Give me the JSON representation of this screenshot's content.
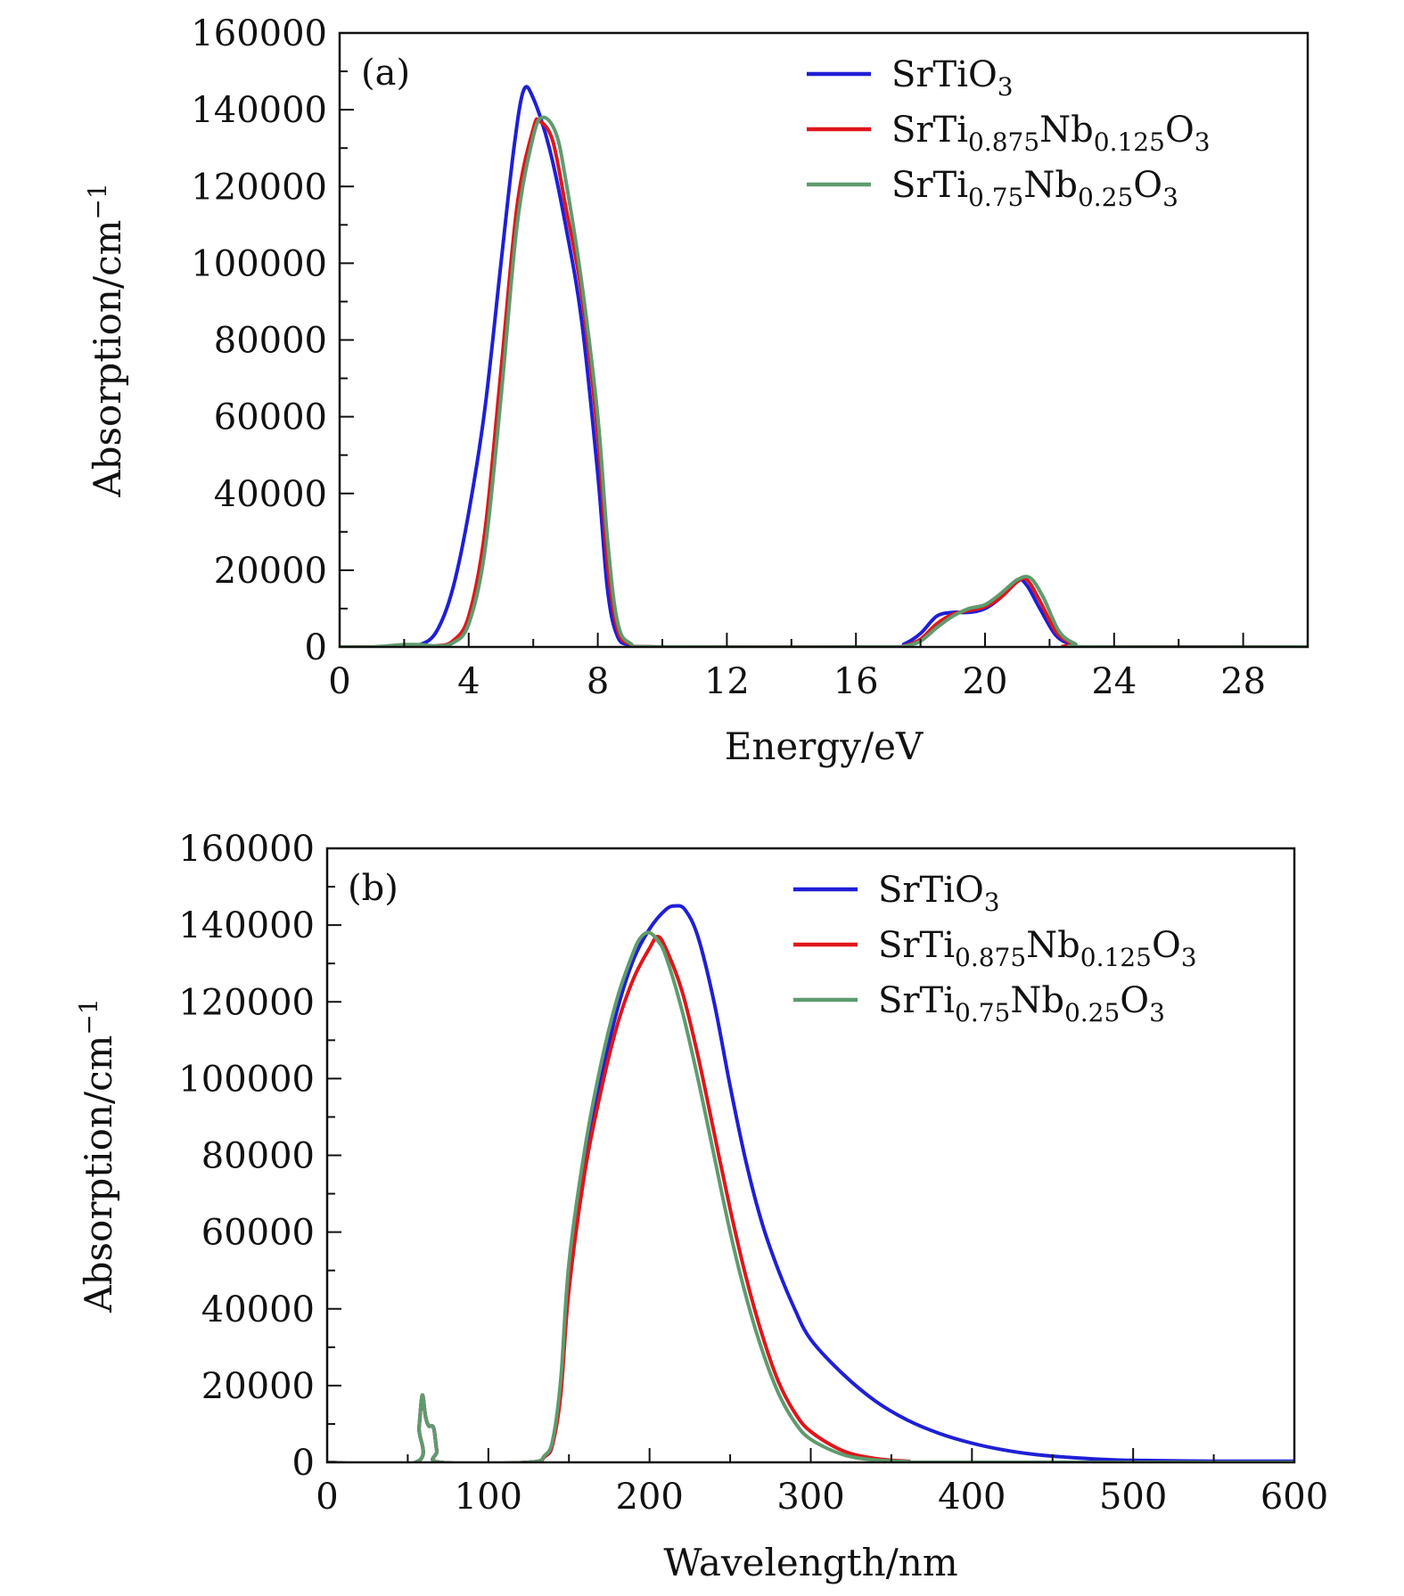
{
  "chart_data": [
    {
      "type": "line",
      "panel_label": "(a)",
      "xlabel": "Energy/eV",
      "ylabel": "Absorption/cm",
      "ylabel_sup": "−1",
      "xlim": [
        0,
        30
      ],
      "ylim": [
        0,
        160000
      ],
      "xticks": [
        0,
        4,
        8,
        12,
        16,
        20,
        24,
        28
      ],
      "yticks": [
        0,
        20000,
        40000,
        60000,
        80000,
        100000,
        120000,
        140000,
        160000
      ],
      "grid": false,
      "legend_position": "top-right",
      "series": [
        {
          "name": "SrTiO3",
          "legend": [
            {
              "t": "SrTiO"
            },
            {
              "t": "3",
              "sub": true
            }
          ],
          "color": "#1f1fd6",
          "points": [
            [
              0,
              0
            ],
            [
              1,
              0
            ],
            [
              2,
              300
            ],
            [
              2.5,
              600
            ],
            [
              3,
              4000
            ],
            [
              3.5,
              15000
            ],
            [
              4,
              35000
            ],
            [
              4.5,
              62000
            ],
            [
              5,
              100000
            ],
            [
              5.4,
              130000
            ],
            [
              5.7,
              145000
            ],
            [
              6,
              143000
            ],
            [
              6.5,
              130000
            ],
            [
              7,
              110000
            ],
            [
              7.5,
              85000
            ],
            [
              8,
              45000
            ],
            [
              8.3,
              15000
            ],
            [
              8.6,
              3000
            ],
            [
              9,
              500
            ],
            [
              10,
              0
            ],
            [
              17,
              0
            ],
            [
              17.5,
              800
            ],
            [
              18,
              3500
            ],
            [
              18.5,
              8000
            ],
            [
              19,
              9000
            ],
            [
              19.5,
              9000
            ],
            [
              20,
              10000
            ],
            [
              20.5,
              13000
            ],
            [
              21,
              17500
            ],
            [
              21.3,
              16000
            ],
            [
              21.7,
              10000
            ],
            [
              22.2,
              3000
            ],
            [
              22.7,
              500
            ],
            [
              23,
              0
            ],
            [
              30,
              0
            ]
          ]
        },
        {
          "name": "SrTi0.875Nb0.125O3",
          "legend": [
            {
              "t": "SrTi"
            },
            {
              "t": "0.875",
              "sub": true
            },
            {
              "t": "Nb"
            },
            {
              "t": "0.125",
              "sub": true
            },
            {
              "t": "O"
            },
            {
              "t": "3",
              "sub": true
            }
          ],
          "color": "#e0161b",
          "points": [
            [
              0,
              0
            ],
            [
              1,
              0
            ],
            [
              2,
              300
            ],
            [
              2.5,
              300
            ],
            [
              3,
              300
            ],
            [
              3.5,
              1500
            ],
            [
              4,
              8000
            ],
            [
              4.5,
              30000
            ],
            [
              5,
              72000
            ],
            [
              5.5,
              115000
            ],
            [
              6,
              135000
            ],
            [
              6.2,
              137000
            ],
            [
              6.6,
              132000
            ],
            [
              7,
              115000
            ],
            [
              7.5,
              92000
            ],
            [
              8,
              55000
            ],
            [
              8.3,
              22000
            ],
            [
              8.6,
              5000
            ],
            [
              9,
              800
            ],
            [
              10,
              0
            ],
            [
              17,
              0
            ],
            [
              17.5,
              300
            ],
            [
              18,
              2000
            ],
            [
              18.5,
              6000
            ],
            [
              19,
              8500
            ],
            [
              19.5,
              9500
            ],
            [
              20,
              10500
            ],
            [
              20.5,
              13000
            ],
            [
              21,
              17000
            ],
            [
              21.3,
              17500
            ],
            [
              21.7,
              12000
            ],
            [
              22.2,
              4000
            ],
            [
              22.7,
              800
            ],
            [
              23,
              0
            ],
            [
              30,
              0
            ]
          ]
        },
        {
          "name": "SrTi0.75Nb0.25O3",
          "legend": [
            {
              "t": "SrTi"
            },
            {
              "t": "0.75",
              "sub": true
            },
            {
              "t": "Nb"
            },
            {
              "t": "0.25",
              "sub": true
            },
            {
              "t": "O"
            },
            {
              "t": "3",
              "sub": true
            }
          ],
          "color": "#5f9b6e",
          "points": [
            [
              0,
              0
            ],
            [
              1,
              0
            ],
            [
              2,
              600
            ],
            [
              2.5,
              600
            ],
            [
              3,
              300
            ],
            [
              3.5,
              1000
            ],
            [
              4,
              6000
            ],
            [
              4.5,
              25000
            ],
            [
              5,
              65000
            ],
            [
              5.5,
              110000
            ],
            [
              6,
              133000
            ],
            [
              6.3,
              138000
            ],
            [
              6.7,
              134000
            ],
            [
              7,
              122000
            ],
            [
              7.5,
              95000
            ],
            [
              8,
              60000
            ],
            [
              8.3,
              28000
            ],
            [
              8.6,
              7000
            ],
            [
              9,
              1000
            ],
            [
              10,
              0
            ],
            [
              17,
              0
            ],
            [
              17.5,
              200
            ],
            [
              18,
              1500
            ],
            [
              18.5,
              5000
            ],
            [
              19,
              8000
            ],
            [
              19.5,
              10000
            ],
            [
              20,
              11000
            ],
            [
              20.5,
              14000
            ],
            [
              21,
              17500
            ],
            [
              21.4,
              18000
            ],
            [
              21.8,
              13000
            ],
            [
              22.3,
              4000
            ],
            [
              22.8,
              800
            ],
            [
              23.2,
              0
            ],
            [
              30,
              0
            ]
          ]
        }
      ]
    },
    {
      "type": "line",
      "panel_label": "(b)",
      "xlabel": "Wavelength/nm",
      "ylabel": "Absorption/cm",
      "ylabel_sup": "−1",
      "xlim": [
        0,
        600
      ],
      "ylim": [
        0,
        160000
      ],
      "xticks": [
        0,
        100,
        200,
        300,
        400,
        500,
        600
      ],
      "yticks": [
        0,
        20000,
        40000,
        60000,
        80000,
        100000,
        120000,
        140000,
        160000
      ],
      "grid": false,
      "legend_position": "top-right",
      "series": [
        {
          "name": "SrTiO3",
          "legend": [
            {
              "t": "SrTiO"
            },
            {
              "t": "3",
              "sub": true
            }
          ],
          "color": "#1f1fd6",
          "points": [
            [
              0,
              0
            ],
            [
              55,
              0
            ],
            [
              57,
              9000
            ],
            [
              59,
              17500
            ],
            [
              61,
              12000
            ],
            [
              63,
              9500
            ],
            [
              66,
              9000
            ],
            [
              68,
              3000
            ],
            [
              70,
              0
            ],
            [
              125,
              0
            ],
            [
              135,
              1500
            ],
            [
              140,
              5000
            ],
            [
              145,
              20000
            ],
            [
              150,
              48000
            ],
            [
              160,
              78000
            ],
            [
              170,
              100000
            ],
            [
              180,
              118000
            ],
            [
              190,
              131000
            ],
            [
              200,
              139000
            ],
            [
              210,
              144000
            ],
            [
              216,
              145000
            ],
            [
              222,
              144000
            ],
            [
              230,
              137000
            ],
            [
              240,
              120000
            ],
            [
              250,
              98000
            ],
            [
              260,
              78000
            ],
            [
              270,
              62000
            ],
            [
              280,
              50000
            ],
            [
              290,
              40000
            ],
            [
              300,
              32000
            ],
            [
              320,
              23000
            ],
            [
              340,
              16000
            ],
            [
              360,
              11000
            ],
            [
              380,
              7500
            ],
            [
              400,
              5000
            ],
            [
              420,
              3200
            ],
            [
              440,
              2000
            ],
            [
              460,
              1300
            ],
            [
              480,
              800
            ],
            [
              500,
              500
            ],
            [
              550,
              300
            ],
            [
              600,
              300
            ]
          ]
        },
        {
          "name": "SrTi0.875Nb0.125O3",
          "legend": [
            {
              "t": "SrTi"
            },
            {
              "t": "0.875",
              "sub": true
            },
            {
              "t": "Nb"
            },
            {
              "t": "0.125",
              "sub": true
            },
            {
              "t": "O"
            },
            {
              "t": "3",
              "sub": true
            }
          ],
          "color": "#e0161b",
          "points": [
            [
              0,
              0
            ],
            [
              55,
              0
            ],
            [
              57,
              9000
            ],
            [
              59,
              17500
            ],
            [
              61,
              12000
            ],
            [
              63,
              9500
            ],
            [
              66,
              9000
            ],
            [
              68,
              3000
            ],
            [
              70,
              0
            ],
            [
              125,
              0
            ],
            [
              135,
              1500
            ],
            [
              140,
              5000
            ],
            [
              145,
              18000
            ],
            [
              150,
              45000
            ],
            [
              160,
              76000
            ],
            [
              170,
              97000
            ],
            [
              180,
              114000
            ],
            [
              190,
              126000
            ],
            [
              200,
              134000
            ],
            [
              205,
              137000
            ],
            [
              210,
              134000
            ],
            [
              220,
              123000
            ],
            [
              230,
              106000
            ],
            [
              240,
              86000
            ],
            [
              250,
              66000
            ],
            [
              260,
              48000
            ],
            [
              270,
              33000
            ],
            [
              280,
              21000
            ],
            [
              290,
              13000
            ],
            [
              300,
              8000
            ],
            [
              320,
              3000
            ],
            [
              340,
              1000
            ],
            [
              360,
              300
            ],
            [
              380,
              0
            ],
            [
              600,
              0
            ]
          ]
        },
        {
          "name": "SrTi0.75Nb0.25O3",
          "legend": [
            {
              "t": "SrTi"
            },
            {
              "t": "0.75",
              "sub": true
            },
            {
              "t": "Nb"
            },
            {
              "t": "0.25",
              "sub": true
            },
            {
              "t": "O"
            },
            {
              "t": "3",
              "sub": true
            }
          ],
          "color": "#5f9b6e",
          "points": [
            [
              0,
              0
            ],
            [
              55,
              0
            ],
            [
              57,
              9000
            ],
            [
              59,
              17500
            ],
            [
              61,
              12000
            ],
            [
              63,
              9500
            ],
            [
              66,
              9000
            ],
            [
              68,
              3000
            ],
            [
              70,
              0
            ],
            [
              125,
              0
            ],
            [
              135,
              1800
            ],
            [
              140,
              6000
            ],
            [
              145,
              22000
            ],
            [
              150,
              52000
            ],
            [
              160,
              82000
            ],
            [
              170,
              104000
            ],
            [
              180,
              121000
            ],
            [
              190,
              133000
            ],
            [
              195,
              137000
            ],
            [
              200,
              138000
            ],
            [
              205,
              136000
            ],
            [
              210,
              132000
            ],
            [
              220,
              118000
            ],
            [
              230,
              100000
            ],
            [
              240,
              80000
            ],
            [
              250,
              60000
            ],
            [
              260,
              43000
            ],
            [
              270,
              29000
            ],
            [
              280,
              18000
            ],
            [
              290,
              10500
            ],
            [
              300,
              6000
            ],
            [
              320,
              2000
            ],
            [
              340,
              600
            ],
            [
              360,
              200
            ],
            [
              380,
              0
            ],
            [
              600,
              0
            ]
          ]
        }
      ]
    }
  ]
}
